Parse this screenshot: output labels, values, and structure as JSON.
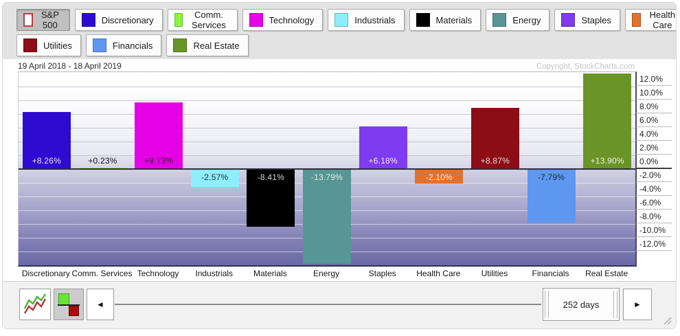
{
  "copyright": "Copyright, StockCharts.com",
  "legend": {
    "rows": [
      [
        {
          "label": "S&P 500",
          "swatch": "#ffffff",
          "swatch_border": "#c23a49",
          "selected": true
        },
        {
          "label": "Discretionary",
          "swatch": "#2e0bd0",
          "selected": false
        },
        {
          "label": "Comm. Services",
          "swatch": "#8df53f",
          "selected": false
        },
        {
          "label": "Technology",
          "swatch": "#e600e6",
          "selected": false
        },
        {
          "label": "Industrials",
          "swatch": "#8eeefc",
          "selected": false
        },
        {
          "label": "Materials",
          "swatch": "#000000",
          "selected": false
        },
        {
          "label": "Energy",
          "swatch": "#569694",
          "selected": false
        },
        {
          "label": "Staples",
          "swatch": "#7e3bef",
          "selected": false
        },
        {
          "label": "Health Care",
          "swatch": "#e2712c",
          "selected": false
        }
      ],
      [
        {
          "label": "Utilities",
          "swatch": "#8c0d16",
          "selected": false
        },
        {
          "label": "Financials",
          "swatch": "#5e97ef",
          "selected": false
        },
        {
          "label": "Real Estate",
          "swatch": "#6a9428",
          "selected": false
        }
      ]
    ]
  },
  "chart_data": {
    "type": "bar",
    "title": "19 April 2018 - 18 April 2019",
    "categories": [
      "Discretionary",
      "Comm. Services",
      "Technology",
      "Industrials",
      "Materials",
      "Energy",
      "Staples",
      "Health Care",
      "Utilities",
      "Financials",
      "Real Estate"
    ],
    "values": [
      8.26,
      0.23,
      9.73,
      -2.57,
      -8.41,
      -13.79,
      6.18,
      -2.1,
      8.87,
      -7.79,
      13.9
    ],
    "bar_labels": [
      "+8.26%",
      "+0.23%",
      "+9.73%",
      "-2.57%",
      "-8.41%",
      "-13.79%",
      "+6.18%",
      "-2.10%",
      "+8.87%",
      "-7.79%",
      "+13.90%"
    ],
    "bar_colors": [
      "#2e0bd0",
      "#8df53f",
      "#e600e6",
      "#8eeefc",
      "#000000",
      "#569694",
      "#7e3bef",
      "#e2712c",
      "#8c0d16",
      "#5e97ef",
      "#6a9428"
    ],
    "label_colors": [
      "#e8e6f5",
      "#101010",
      "#47003f",
      "#17323a",
      "#d8d8d8",
      "#e3ecec",
      "#efe8fa",
      "#faeade",
      "#eed6d6",
      "#13284a",
      "#eef4df"
    ],
    "xlabel": "",
    "ylabel": "",
    "ylim": [
      -14.0,
      14.1
    ],
    "ytick_values": [
      12,
      10,
      8,
      6,
      4,
      2,
      0,
      -2,
      -4,
      -6,
      -8,
      -10,
      -12
    ],
    "ytick_labels": [
      "12.0%",
      "10.0%",
      "8.0%",
      "6.0%",
      "4.0%",
      "2.0%",
      "0.0%",
      "-2.0%",
      "-4.0%",
      "-6.0%",
      "-8.0%",
      "-10.0%",
      "-12.0%"
    ],
    "grid": true,
    "legend_position": "top"
  },
  "toolbar": {
    "left_arrow": "◄",
    "right_arrow": "►",
    "range_label": "252 days"
  }
}
